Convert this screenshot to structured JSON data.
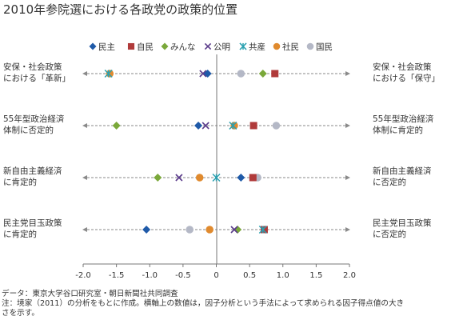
{
  "chart_data": {
    "type": "scatter",
    "title": "2010年参院選における各政党の政策的位置",
    "xlim": [
      -2.0,
      2.0
    ],
    "xticks": [
      "-2.0",
      "-1.5",
      "-1.0",
      "-0.5",
      "0",
      "0.5",
      "1.0",
      "1.5",
      "2.0"
    ],
    "legend_position": "top",
    "series": [
      {
        "name": "民主",
        "marker": "diamond",
        "color": "#1f5aa8",
        "values": [
          -0.13,
          -0.27,
          0.37,
          -1.05
        ]
      },
      {
        "name": "自民",
        "marker": "square",
        "color": "#b03a3a",
        "values": [
          0.88,
          0.56,
          0.55,
          0.72
        ]
      },
      {
        "name": "みんな",
        "marker": "diamond",
        "color": "#7aa83a",
        "values": [
          0.7,
          -1.5,
          -0.88,
          0.32
        ]
      },
      {
        "name": "公明",
        "marker": "x",
        "color": "#5a3a8a",
        "values": [
          -0.2,
          -0.16,
          -0.56,
          0.27
        ]
      },
      {
        "name": "共産",
        "marker": "asterisk",
        "color": "#2aa0b0",
        "values": [
          -1.62,
          0.25,
          0.0,
          0.7
        ]
      },
      {
        "name": "社民",
        "marker": "circle",
        "color": "#e08a2e",
        "values": [
          -1.6,
          0.27,
          -0.25,
          -0.1
        ]
      },
      {
        "name": "国民",
        "marker": "circle",
        "color": "#b4b8c6",
        "values": [
          0.37,
          0.9,
          0.62,
          -0.4
        ]
      }
    ],
    "rows": [
      {
        "left": [
          "安保・社会政策",
          "における「革新」"
        ],
        "right": [
          "安保・社会政策",
          "における「保守」"
        ]
      },
      {
        "left": [
          "55年型政治経済",
          "体制に否定的"
        ],
        "right": [
          "55年型政治経済",
          "体制に肯定的"
        ]
      },
      {
        "left": [
          "新自由主義経済",
          "に肯定的"
        ],
        "right": [
          "新自由主義経済",
          "に否定的"
        ]
      },
      {
        "left": [
          "民主党目玉政策",
          "に肯定的"
        ],
        "right": [
          "民主党目玉政策",
          "に否定的"
        ]
      }
    ],
    "notes": [
      "データ：東京大学谷口研究室・朝日新聞社共同調査",
      "注：境家（2011）の分析をもとに作成。横軸上の数値は，因子分析という手法によって求められる因子得点値の大き",
      "さを示す。"
    ]
  }
}
